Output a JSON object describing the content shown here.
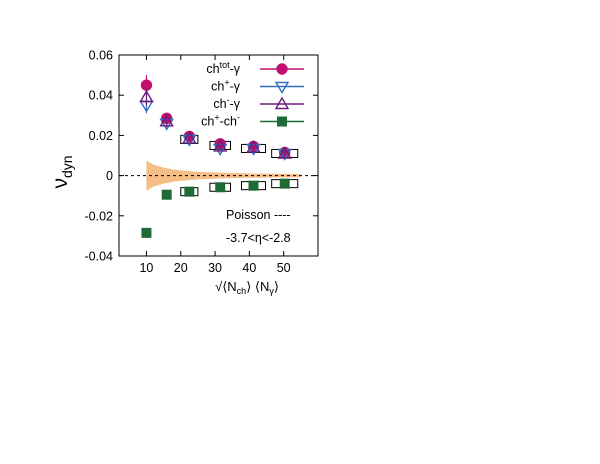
{
  "chart_data": {
    "type": "scatter",
    "ylabel_main": "ν",
    "ylabel_sub": "dyn",
    "xlabel_parts": {
      "root": "√",
      "open1": "⟨N",
      "sub1": "ch",
      "close1": "⟩",
      "open2": " ⟨N",
      "sub2": "γ",
      "close2": "⟩"
    },
    "xlim": [
      2,
      60
    ],
    "ylim": [
      -0.04,
      0.06
    ],
    "xticks": [
      10,
      20,
      30,
      40,
      50
    ],
    "xtick_labels": [
      "10",
      "20",
      "30",
      "40",
      "50"
    ],
    "yticks": [
      -0.04,
      -0.02,
      0,
      0.02,
      0.04,
      0.06
    ],
    "ytick_labels": [
      "-0.04",
      "-0.02",
      "0",
      "0.02",
      "0.04",
      "0.06"
    ],
    "zero_line": "dashed",
    "legend": {
      "position": "top-right",
      "entries": [
        {
          "parts": [
            "ch",
            "tot",
            "-γ"
          ],
          "styles": [
            "n",
            "sup",
            "n"
          ],
          "marker": "circle-filled",
          "color": "#c0106e"
        },
        {
          "parts": [
            "ch",
            "+",
            "-γ"
          ],
          "styles": [
            "n",
            "sup",
            "n"
          ],
          "marker": "triangle-down-open",
          "color": "#2f6fbf"
        },
        {
          "parts": [
            "ch",
            "-",
            "-γ"
          ],
          "styles": [
            "n",
            "sup",
            "n"
          ],
          "marker": "triangle-up-open",
          "color": "#6a1b7a"
        },
        {
          "parts": [
            "ch",
            "+",
            "-ch",
            "-"
          ],
          "styles": [
            "n",
            "sup",
            "n",
            "sup"
          ],
          "marker": "square-filled",
          "color": "#1e6b35"
        }
      ]
    },
    "annotations": [
      "Poisson ----",
      "-3.7<η<-2.8"
    ],
    "series": [
      {
        "marker": "circle-filled",
        "color": "#c0106e",
        "x": [
          10,
          15.9,
          22.5,
          31.5,
          41.2,
          50.3
        ],
        "y": [
          0.045,
          0.0285,
          0.0195,
          0.0158,
          0.0145,
          0.0115
        ],
        "err": [
          0.005,
          0.002,
          0.0012,
          0.001,
          0.001,
          0.001
        ]
      },
      {
        "marker": "triangle-down-open",
        "color": "#2f6fbf",
        "x": [
          10,
          15.9,
          22.5,
          31.5,
          41.2,
          50.3
        ],
        "y": [
          0.035,
          0.026,
          0.018,
          0.0135,
          0.0135,
          0.011
        ],
        "err": [
          0.004,
          0.002,
          0.0012,
          0.001,
          0.001,
          0.001
        ]
      },
      {
        "marker": "triangle-up-open",
        "color": "#6a1b7a",
        "x": [
          10,
          15.9,
          22.5,
          31.5,
          41.2,
          50.3
        ],
        "y": [
          0.039,
          0.027,
          0.0185,
          0.0145,
          0.014,
          0.011
        ],
        "err": [
          0.004,
          0.002,
          0.0012,
          0.001,
          0.001,
          0.001
        ]
      },
      {
        "marker": "square-filled",
        "color": "#1e6b35",
        "x": [
          10,
          15.9,
          22.5,
          31.5,
          41.2,
          50.3
        ],
        "y": [
          -0.0285,
          -0.0095,
          -0.008,
          -0.0058,
          -0.005,
          -0.004
        ],
        "err": [
          0.0025,
          0.001,
          0.0008,
          0.0008,
          0.0008,
          0.0008
        ]
      }
    ],
    "syst_boxes": [
      {
        "x": 22.5,
        "y": 0.018,
        "half_width": 2.5,
        "half_height": 0.002
      },
      {
        "x": 31.5,
        "y": 0.015,
        "half_width": 3.0,
        "half_height": 0.002
      },
      {
        "x": 41.2,
        "y": 0.0135,
        "half_width": 3.5,
        "half_height": 0.002
      },
      {
        "x": 50.3,
        "y": 0.011,
        "half_width": 3.8,
        "half_height": 0.002
      },
      {
        "x": 22.5,
        "y": -0.008,
        "half_width": 2.5,
        "half_height": 0.002
      },
      {
        "x": 31.5,
        "y": -0.0058,
        "half_width": 3.0,
        "half_height": 0.002
      },
      {
        "x": 41.2,
        "y": -0.005,
        "half_width": 3.5,
        "half_height": 0.002
      },
      {
        "x": 50.3,
        "y": -0.004,
        "half_width": 3.8,
        "half_height": 0.002
      }
    ],
    "poisson_band": {
      "color": "#f5be86",
      "x": [
        10,
        12,
        15,
        18,
        22,
        26,
        32,
        40,
        50,
        55
      ],
      "upper": [
        0.0075,
        0.0055,
        0.004,
        0.003,
        0.0023,
        0.0018,
        0.0014,
        0.0011,
        0.0009,
        0.0008
      ],
      "lower": [
        -0.0075,
        -0.0055,
        -0.004,
        -0.003,
        -0.0023,
        -0.0018,
        -0.0014,
        -0.0011,
        -0.0009,
        -0.0008
      ]
    }
  }
}
